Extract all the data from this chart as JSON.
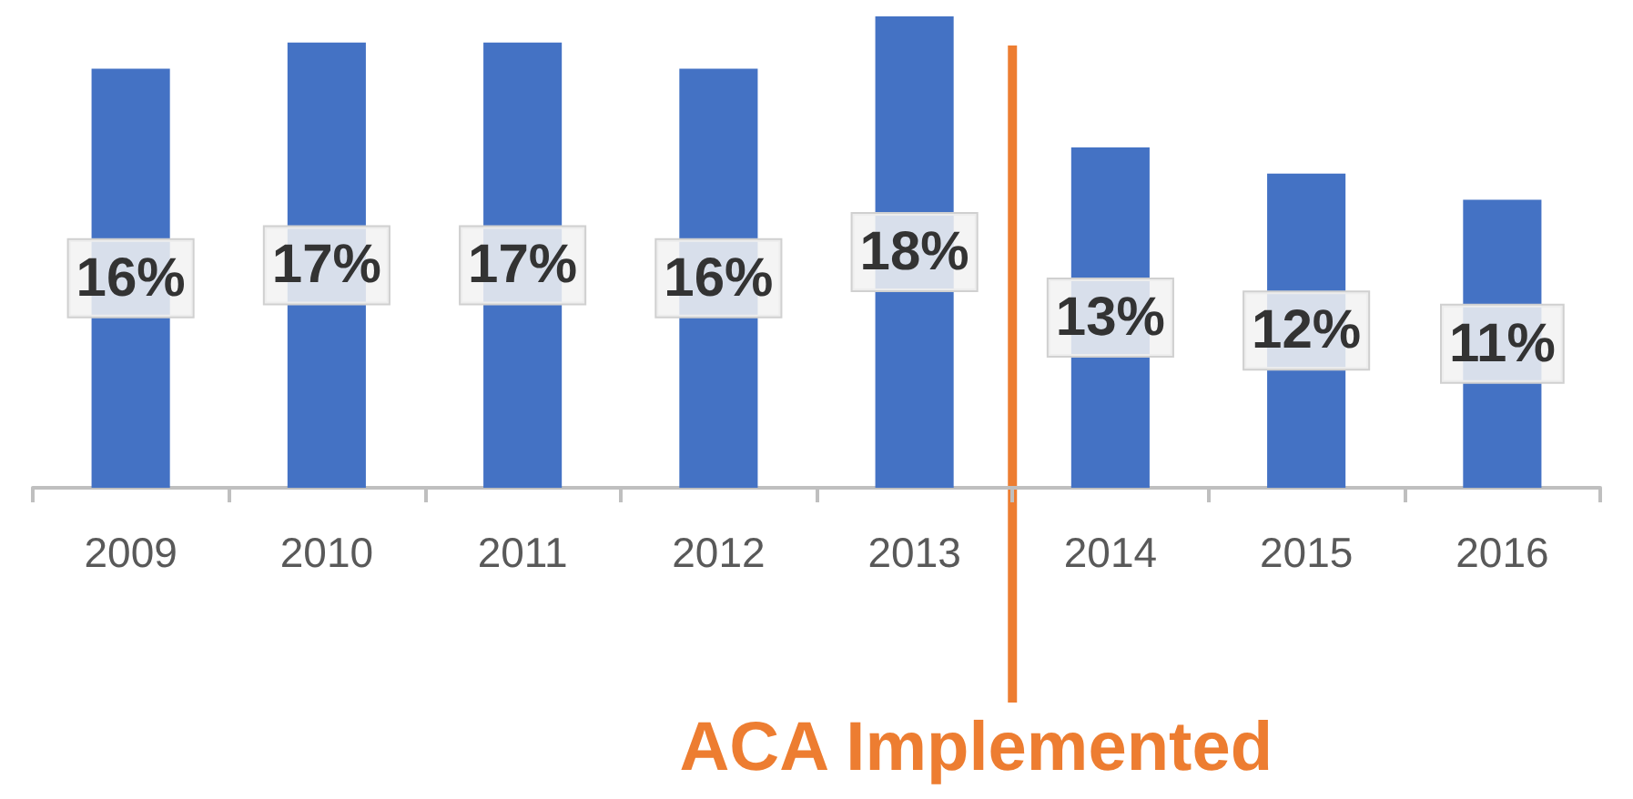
{
  "chart_data": {
    "type": "bar",
    "categories": [
      "2009",
      "2010",
      "2011",
      "2012",
      "2013",
      "2014",
      "2015",
      "2016"
    ],
    "values": [
      16,
      17,
      17,
      16,
      18,
      13,
      12,
      11
    ],
    "value_labels": [
      "16%",
      "17%",
      "17%",
      "16%",
      "18%",
      "13%",
      "12%",
      "11%"
    ],
    "color": "#4472c4",
    "ref_lines": [
      {
        "axis": "x",
        "value": "2014",
        "label": "ACA Implemented",
        "color": "#ed7d31"
      }
    ],
    "tick_labels": "x"
  }
}
